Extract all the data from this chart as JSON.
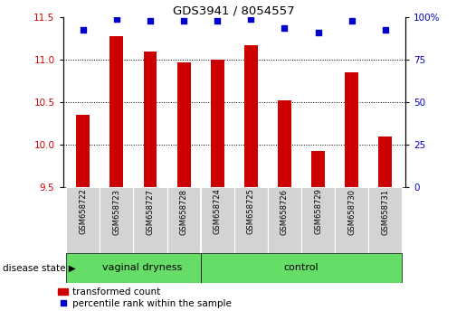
{
  "title": "GDS3941 / 8054557",
  "samples": [
    "GSM658722",
    "GSM658723",
    "GSM658727",
    "GSM658728",
    "GSM658724",
    "GSM658725",
    "GSM658726",
    "GSM658729",
    "GSM658730",
    "GSM658731"
  ],
  "bar_values": [
    10.35,
    11.28,
    11.1,
    10.97,
    11.0,
    11.17,
    10.52,
    9.93,
    10.85,
    10.1
  ],
  "scatter_values": [
    93,
    99,
    98,
    98,
    98,
    99,
    94,
    91,
    98,
    93
  ],
  "ylim_left": [
    9.5,
    11.5
  ],
  "ylim_right": [
    0,
    100
  ],
  "yticks_left": [
    9.5,
    10.0,
    10.5,
    11.0,
    11.5
  ],
  "yticks_right": [
    0,
    25,
    50,
    75,
    100
  ],
  "ytick_labels_right": [
    "0",
    "25",
    "50",
    "75",
    "100%"
  ],
  "bar_color": "#cc0000",
  "scatter_color": "#0000cc",
  "group_divider_after": 3,
  "disease_state_label": "disease state",
  "group_labels": [
    "vaginal dryness",
    "control"
  ],
  "legend_bar_label": "transformed count",
  "legend_scatter_label": "percentile rank within the sample",
  "tick_label_color_left": "#cc0000",
  "tick_label_color_right": "#0000cc",
  "xlabel_bg_color": "#d3d3d3",
  "group_box_color": "#66dd66",
  "grid_yticks": [
    10.0,
    10.5,
    11.0
  ]
}
